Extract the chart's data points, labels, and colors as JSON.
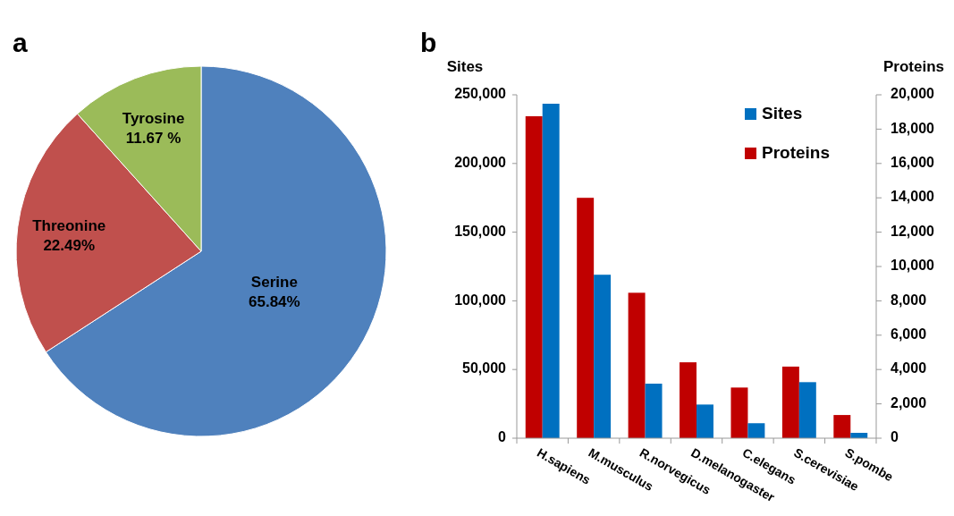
{
  "chart_data": [
    {
      "type": "pie",
      "title": "a",
      "categories": [
        "Serine",
        "Threonine",
        "Tyrosine"
      ],
      "values": [
        65.84,
        22.49,
        11.67
      ],
      "colors": [
        "#4f81bd",
        "#c0504d",
        "#9bbb59"
      ],
      "value_labels": [
        "65.84%",
        "22.49%",
        "11.67 %"
      ]
    },
    {
      "type": "bar",
      "title": "b",
      "categories": [
        "H.sapiens",
        "M.musculus",
        "R.norvegicus",
        "D.melanogaster",
        "C.elegans",
        "S.cerevisiae",
        "S.pombe"
      ],
      "ylabel": "Sites",
      "y2label": "Proteins",
      "ylim": [
        0,
        250000
      ],
      "yticks": [
        {
          "value": 0,
          "label": "0"
        },
        {
          "value": 50000,
          "label": "50,000"
        },
        {
          "value": 100000,
          "label": "100,000"
        },
        {
          "value": 150000,
          "label": "150,000"
        },
        {
          "value": 200000,
          "label": "200,000"
        },
        {
          "value": 250000,
          "label": "250,000"
        }
      ],
      "y2lim": [
        0,
        20000
      ],
      "y2ticks": [
        {
          "value": 0,
          "label": "0"
        },
        {
          "value": 2000,
          "label": "2,000"
        },
        {
          "value": 4000,
          "label": "4,000"
        },
        {
          "value": 6000,
          "label": "6,000"
        },
        {
          "value": 8000,
          "label": "8,000"
        },
        {
          "value": 10000,
          "label": "10,000"
        },
        {
          "value": 12000,
          "label": "12,000"
        },
        {
          "value": 14000,
          "label": "14,000"
        },
        {
          "value": 16000,
          "label": "16,000"
        },
        {
          "value": 18000,
          "label": "18,000"
        },
        {
          "value": 20000,
          "label": "20,000"
        }
      ],
      "legend": "top right",
      "series": [
        {
          "name": "Proteins",
          "color": "#c00000",
          "axis": "y2",
          "values": [
            18750,
            14000,
            8470,
            4420,
            2950,
            4170,
            1350
          ]
        },
        {
          "name": "Sites",
          "color": "#0070c0",
          "values": [
            243500,
            119000,
            39700,
            24500,
            10900,
            40800,
            3900
          ]
        }
      ]
    }
  ]
}
